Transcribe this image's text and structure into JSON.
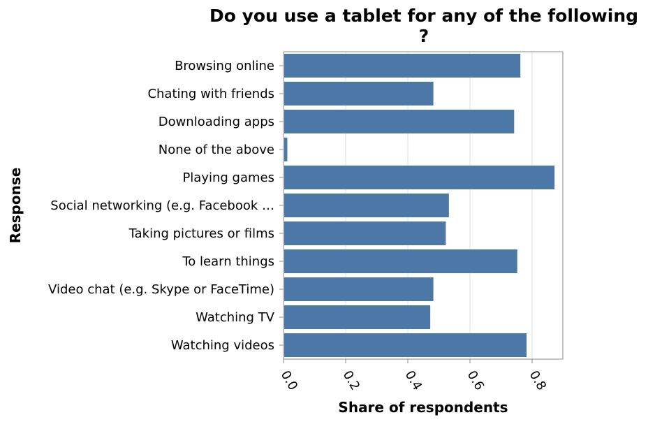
{
  "chart_data": {
    "type": "bar",
    "orientation": "horizontal",
    "title_line1": "Do you use a tablet for any of the following",
    "title_line2": "?",
    "xlabel": "Share of respondents",
    "ylabel": "Response",
    "xlim": [
      0,
      0.9
    ],
    "x_ticks": [
      "0.0",
      "0.2",
      "0.4",
      "0.6",
      "0.8"
    ],
    "grid": "vertical",
    "bar_color": "#4c78a8",
    "categories": [
      "Browsing online",
      "Chating with friends",
      "Downloading apps",
      "None of the above",
      "Playing games",
      "Social networking (e.g. Facebook …",
      "Taking pictures or films",
      "To learn things",
      "Video chat (e.g. Skype or FaceTime)",
      "Watching TV",
      "Watching videos"
    ],
    "values": [
      0.76,
      0.48,
      0.74,
      0.01,
      0.87,
      0.53,
      0.52,
      0.75,
      0.48,
      0.47,
      0.78
    ]
  }
}
